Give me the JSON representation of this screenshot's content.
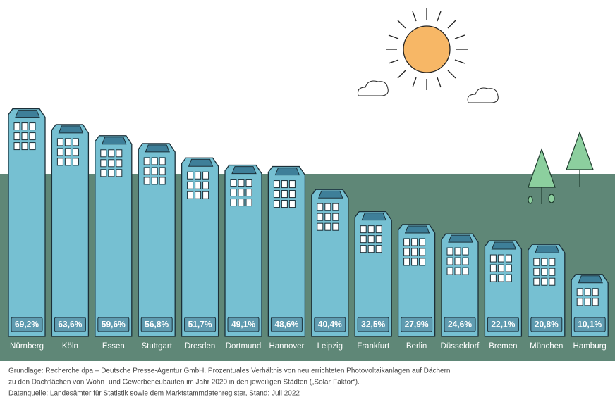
{
  "chart_data": {
    "type": "bar",
    "categories": [
      "Nürnberg",
      "Köln",
      "Essen",
      "Stuttgart",
      "Dresden",
      "Dortmund",
      "Hannover",
      "Leipzig",
      "Frankfurt",
      "Berlin",
      "Düsseldorf",
      "Bremen",
      "München",
      "Hamburg"
    ],
    "values": [
      69.2,
      63.6,
      59.6,
      56.8,
      51.7,
      49.1,
      48.6,
      40.4,
      32.5,
      27.9,
      24.6,
      22.1,
      20.8,
      10.1
    ],
    "value_labels": [
      "69,2%",
      "63,6%",
      "59,6%",
      "56,8%",
      "51,7%",
      "49,1%",
      "48,6%",
      "40,4%",
      "32,5%",
      "27,9%",
      "24,6%",
      "22,1%",
      "20,8%",
      "10,1%"
    ],
    "color": "#76c0d2",
    "notes": [
      "Grundlage: Recherche dpa – Deutsche Presse-Agentur GmbH. Prozentuales Verhältnis von neu errichteten Photovoltaikanlagen auf Dächern",
      "zu den Dachflächen von Wohn- und Gewerbeneubauten im Jahr 2020 in den jeweiligen Städten („Solar-Faktor“).",
      "Datenquelle: Landesämter für Statistik sowie dem Marktstammdatenregister, Stand: Juli 2022"
    ]
  }
}
